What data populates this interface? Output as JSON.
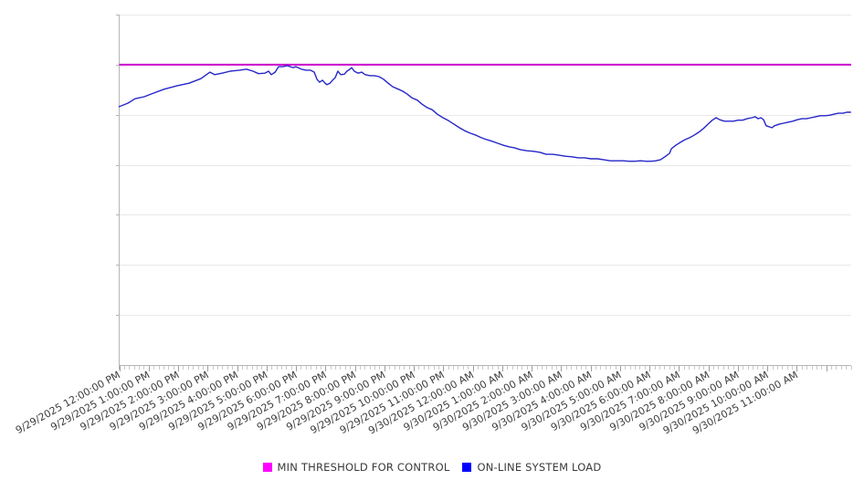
{
  "chart_data": {
    "type": "line",
    "title": "",
    "x_axis": {
      "tick_labels": [
        "9/29/2025 12:00:00 PM",
        "9/29/2025 1:00:00 PM",
        "9/29/2025 2:00:00 PM",
        "9/29/2025 3:00:00 PM",
        "9/29/2025 4:00:00 PM",
        "9/29/2025 5:00:00 PM",
        "9/29/2025 6:00:00 PM",
        "9/29/2025 7:00:00 PM",
        "9/29/2025 8:00:00 PM",
        "9/29/2025 9:00:00 PM",
        "9/29/2025 10:00:00 PM",
        "9/29/2025 11:00:00 PM",
        "9/30/2025 12:00:00 AM",
        "9/30/2025 1:00:00 AM",
        "9/30/2025 2:00:00 AM",
        "9/30/2025 3:00:00 AM",
        "9/30/2025 4:00:00 AM",
        "9/30/2025 5:00:00 AM",
        "9/30/2025 6:00:00 AM",
        "9/30/2025 7:00:00 AM",
        "9/30/2025 8:00:00 AM",
        "9/30/2025 9:00:00 AM",
        "9/30/2025 10:00:00 AM",
        "9/30/2025 11:00:00 AM"
      ],
      "label_rotation_deg": -29,
      "hours_total": 24.85,
      "major_tick_interval_hours": 1,
      "minor_tick_interval_minutes": 10
    },
    "y_axis": {
      "tick_labels": [],
      "note": "y-axis rendered without value labels; series values expressed in gridline units (0 = x-axis, 7 = top gridline)",
      "range": [
        0,
        7
      ],
      "gridline_values": [
        1,
        2,
        3,
        4,
        5,
        6,
        7
      ]
    },
    "series": [
      {
        "name": "MIN THRESHOLD FOR CONTROL",
        "type": "constant-line",
        "value": 6.0,
        "color": "#cc00cc",
        "legend_color": "#ff00ff"
      },
      {
        "name": "ON-LINE SYSTEM LOAD",
        "type": "line",
        "color": "#2626c9",
        "legend_color": "#0000ff",
        "points": [
          [
            0.0,
            5.16
          ],
          [
            0.29,
            5.23
          ],
          [
            0.54,
            5.32
          ],
          [
            0.85,
            5.36
          ],
          [
            1.16,
            5.43
          ],
          [
            1.53,
            5.51
          ],
          [
            1.97,
            5.58
          ],
          [
            2.37,
            5.63
          ],
          [
            2.77,
            5.72
          ],
          [
            3.08,
            5.85
          ],
          [
            3.24,
            5.8
          ],
          [
            3.49,
            5.83
          ],
          [
            3.77,
            5.87
          ],
          [
            4.08,
            5.89
          ],
          [
            4.32,
            5.91
          ],
          [
            4.54,
            5.87
          ],
          [
            4.73,
            5.82
          ],
          [
            4.94,
            5.83
          ],
          [
            5.07,
            5.87
          ],
          [
            5.16,
            5.8
          ],
          [
            5.29,
            5.85
          ],
          [
            5.41,
            5.96
          ],
          [
            5.56,
            5.96
          ],
          [
            5.69,
            5.98
          ],
          [
            5.81,
            5.96
          ],
          [
            5.9,
            5.94
          ],
          [
            6.0,
            5.96
          ],
          [
            6.18,
            5.91
          ],
          [
            6.34,
            5.89
          ],
          [
            6.49,
            5.89
          ],
          [
            6.62,
            5.85
          ],
          [
            6.71,
            5.71
          ],
          [
            6.8,
            5.65
          ],
          [
            6.9,
            5.69
          ],
          [
            6.99,
            5.63
          ],
          [
            7.05,
            5.6
          ],
          [
            7.15,
            5.63
          ],
          [
            7.24,
            5.69
          ],
          [
            7.33,
            5.74
          ],
          [
            7.42,
            5.87
          ],
          [
            7.52,
            5.8
          ],
          [
            7.64,
            5.81
          ],
          [
            7.73,
            5.87
          ],
          [
            7.83,
            5.91
          ],
          [
            7.89,
            5.94
          ],
          [
            7.98,
            5.87
          ],
          [
            8.11,
            5.83
          ],
          [
            8.23,
            5.85
          ],
          [
            8.35,
            5.8
          ],
          [
            8.51,
            5.78
          ],
          [
            8.66,
            5.78
          ],
          [
            8.82,
            5.76
          ],
          [
            8.97,
            5.71
          ],
          [
            9.13,
            5.63
          ],
          [
            9.28,
            5.56
          ],
          [
            9.47,
            5.51
          ],
          [
            9.62,
            5.47
          ],
          [
            9.78,
            5.41
          ],
          [
            9.93,
            5.34
          ],
          [
            10.12,
            5.29
          ],
          [
            10.28,
            5.21
          ],
          [
            10.46,
            5.14
          ],
          [
            10.62,
            5.1
          ],
          [
            10.8,
            5.01
          ],
          [
            10.99,
            4.94
          ],
          [
            11.18,
            4.88
          ],
          [
            11.36,
            4.81
          ],
          [
            11.55,
            4.74
          ],
          [
            11.73,
            4.68
          ],
          [
            11.92,
            4.63
          ],
          [
            12.11,
            4.59
          ],
          [
            12.29,
            4.54
          ],
          [
            12.48,
            4.5
          ],
          [
            12.66,
            4.47
          ],
          [
            12.85,
            4.43
          ],
          [
            13.04,
            4.39
          ],
          [
            13.22,
            4.36
          ],
          [
            13.41,
            4.34
          ],
          [
            13.62,
            4.3
          ],
          [
            13.84,
            4.28
          ],
          [
            14.06,
            4.27
          ],
          [
            14.28,
            4.25
          ],
          [
            14.49,
            4.21
          ],
          [
            14.71,
            4.21
          ],
          [
            14.93,
            4.19
          ],
          [
            15.14,
            4.17
          ],
          [
            15.36,
            4.16
          ],
          [
            15.58,
            4.14
          ],
          [
            15.79,
            4.14
          ],
          [
            16.01,
            4.12
          ],
          [
            16.23,
            4.12
          ],
          [
            16.45,
            4.1
          ],
          [
            16.66,
            4.08
          ],
          [
            16.88,
            4.08
          ],
          [
            17.1,
            4.08
          ],
          [
            17.31,
            4.07
          ],
          [
            17.5,
            4.07
          ],
          [
            17.69,
            4.08
          ],
          [
            17.87,
            4.07
          ],
          [
            18.06,
            4.07
          ],
          [
            18.21,
            4.08
          ],
          [
            18.37,
            4.1
          ],
          [
            18.52,
            4.16
          ],
          [
            18.68,
            4.23
          ],
          [
            18.74,
            4.32
          ],
          [
            18.89,
            4.39
          ],
          [
            19.05,
            4.45
          ],
          [
            19.2,
            4.5
          ],
          [
            19.36,
            4.54
          ],
          [
            19.51,
            4.59
          ],
          [
            19.67,
            4.65
          ],
          [
            19.82,
            4.72
          ],
          [
            19.98,
            4.81
          ],
          [
            20.13,
            4.89
          ],
          [
            20.26,
            4.94
          ],
          [
            20.38,
            4.9
          ],
          [
            20.54,
            4.87
          ],
          [
            20.69,
            4.87
          ],
          [
            20.85,
            4.87
          ],
          [
            21.0,
            4.89
          ],
          [
            21.16,
            4.89
          ],
          [
            21.31,
            4.92
          ],
          [
            21.47,
            4.94
          ],
          [
            21.59,
            4.96
          ],
          [
            21.68,
            4.92
          ],
          [
            21.78,
            4.94
          ],
          [
            21.87,
            4.9
          ],
          [
            21.96,
            4.78
          ],
          [
            22.06,
            4.76
          ],
          [
            22.15,
            4.74
          ],
          [
            22.24,
            4.78
          ],
          [
            22.4,
            4.81
          ],
          [
            22.55,
            4.83
          ],
          [
            22.7,
            4.85
          ],
          [
            22.86,
            4.87
          ],
          [
            23.02,
            4.9
          ],
          [
            23.17,
            4.92
          ],
          [
            23.33,
            4.92
          ],
          [
            23.48,
            4.94
          ],
          [
            23.64,
            4.96
          ],
          [
            23.79,
            4.98
          ],
          [
            23.95,
            4.98
          ],
          [
            24.1,
            4.99
          ],
          [
            24.25,
            5.01
          ],
          [
            24.41,
            5.03
          ],
          [
            24.57,
            5.03
          ],
          [
            24.69,
            5.05
          ],
          [
            24.82,
            5.05
          ]
        ]
      }
    ],
    "legend_position": "bottom-center",
    "grid": true,
    "colors": {
      "background": "#ffffff",
      "axis_line": "#b5b5b5",
      "gridline": "#e9e9e9",
      "minor_tick": "#c9c9c9",
      "major_tick": "#9e9e9e",
      "tick_label_text": "#3d3d3d",
      "legend_text": "#3a3a3a"
    }
  }
}
